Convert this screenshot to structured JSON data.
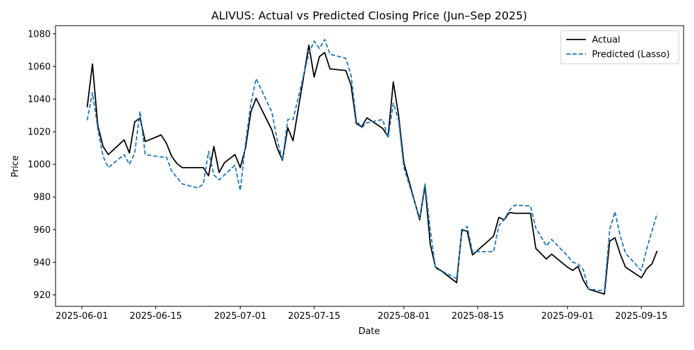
{
  "chart_data": {
    "type": "line",
    "title": "ALIVUS: Actual vs Predicted Closing Price (Jun–Sep 2025)",
    "xlabel": "Date",
    "ylabel": "Price",
    "xlim": [
      "2025-05-27",
      "2025-09-23"
    ],
    "ylim": [
      913,
      1085
    ],
    "x_ticks": [
      "2025-06-01",
      "2025-06-15",
      "2025-07-01",
      "2025-07-15",
      "2025-08-01",
      "2025-08-15",
      "2025-09-01",
      "2025-09-15"
    ],
    "y_ticks": [
      920,
      940,
      960,
      980,
      1000,
      1020,
      1040,
      1060,
      1080
    ],
    "grid": false,
    "legend": {
      "position": "top-right"
    },
    "series": [
      {
        "name": "Actual",
        "color": "#000000",
        "style": "solid",
        "points": [
          [
            "2025-06-02",
            1035
          ],
          [
            "2025-06-03",
            1061.5
          ],
          [
            "2025-06-04",
            1024
          ],
          [
            "2025-06-05",
            1011
          ],
          [
            "2025-06-06",
            1006
          ],
          [
            "2025-06-09",
            1015
          ],
          [
            "2025-06-10",
            1007
          ],
          [
            "2025-06-11",
            1026
          ],
          [
            "2025-06-12",
            1028.5
          ],
          [
            "2025-06-13",
            1014
          ],
          [
            "2025-06-16",
            1018
          ],
          [
            "2025-06-17",
            1013
          ],
          [
            "2025-06-18",
            1005
          ],
          [
            "2025-06-19",
            1000.5
          ],
          [
            "2025-06-20",
            998
          ],
          [
            "2025-06-23",
            998
          ],
          [
            "2025-06-24",
            998
          ],
          [
            "2025-06-25",
            993
          ],
          [
            "2025-06-26",
            1011
          ],
          [
            "2025-06-27",
            995
          ],
          [
            "2025-06-28",
            1001
          ],
          [
            "2025-06-30",
            1006
          ],
          [
            "2025-07-01",
            998
          ],
          [
            "2025-07-02",
            1010
          ],
          [
            "2025-07-03",
            1032
          ],
          [
            "2025-07-04",
            1040.5
          ],
          [
            "2025-07-07",
            1021
          ],
          [
            "2025-07-08",
            1010
          ],
          [
            "2025-07-09",
            1002.5
          ],
          [
            "2025-07-10",
            1022.5
          ],
          [
            "2025-07-11",
            1014.5
          ],
          [
            "2025-07-14",
            1073
          ],
          [
            "2025-07-15",
            1053.5
          ],
          [
            "2025-07-16",
            1066
          ],
          [
            "2025-07-17",
            1068.5
          ],
          [
            "2025-07-18",
            1058.5
          ],
          [
            "2025-07-21",
            1057.5
          ],
          [
            "2025-07-22",
            1048.5
          ],
          [
            "2025-07-23",
            1025
          ],
          [
            "2025-07-24",
            1023
          ],
          [
            "2025-07-25",
            1028.5
          ],
          [
            "2025-07-28",
            1022
          ],
          [
            "2025-07-29",
            1017
          ],
          [
            "2025-07-30",
            1050.5
          ],
          [
            "2025-07-31",
            1030
          ],
          [
            "2025-08-01",
            1001
          ],
          [
            "2025-08-04",
            966
          ],
          [
            "2025-08-05",
            987
          ],
          [
            "2025-08-06",
            951
          ],
          [
            "2025-08-07",
            937
          ],
          [
            "2025-08-08",
            935
          ],
          [
            "2025-08-11",
            927.5
          ],
          [
            "2025-08-12",
            960
          ],
          [
            "2025-08-13",
            959
          ],
          [
            "2025-08-14",
            944.5
          ],
          [
            "2025-08-18",
            956
          ],
          [
            "2025-08-19",
            967.5
          ],
          [
            "2025-08-20",
            966
          ],
          [
            "2025-08-21",
            970.5
          ],
          [
            "2025-08-22",
            970
          ],
          [
            "2025-08-25",
            970
          ],
          [
            "2025-08-26",
            948.5
          ],
          [
            "2025-08-28",
            942
          ],
          [
            "2025-08-29",
            945
          ],
          [
            "2025-09-01",
            937
          ],
          [
            "2025-09-02",
            935
          ],
          [
            "2025-09-03",
            937.5
          ],
          [
            "2025-09-04",
            929
          ],
          [
            "2025-09-05",
            923.5
          ],
          [
            "2025-09-08",
            920.5
          ],
          [
            "2025-09-09",
            953
          ],
          [
            "2025-09-10",
            955
          ],
          [
            "2025-09-11",
            945
          ],
          [
            "2025-09-12",
            937
          ],
          [
            "2025-09-15",
            930.5
          ],
          [
            "2025-09-16",
            936
          ],
          [
            "2025-09-17",
            939
          ],
          [
            "2025-09-18",
            947
          ]
        ]
      },
      {
        "name": "Predicted (Lasso)",
        "color": "#1f77b4",
        "style": "dashed",
        "points": [
          [
            "2025-06-02",
            1027
          ],
          [
            "2025-06-03",
            1044
          ],
          [
            "2025-06-04",
            1022
          ],
          [
            "2025-06-05",
            1005
          ],
          [
            "2025-06-06",
            998
          ],
          [
            "2025-06-09",
            1006
          ],
          [
            "2025-06-10",
            1000
          ],
          [
            "2025-06-11",
            1007
          ],
          [
            "2025-06-12",
            1032.5
          ],
          [
            "2025-06-13",
            1006
          ],
          [
            "2025-06-16",
            1004.5
          ],
          [
            "2025-06-17",
            1004.5
          ],
          [
            "2025-06-18",
            996
          ],
          [
            "2025-06-19",
            992
          ],
          [
            "2025-06-20",
            988
          ],
          [
            "2025-06-23",
            985.5
          ],
          [
            "2025-06-24",
            988
          ],
          [
            "2025-06-25",
            1008
          ],
          [
            "2025-06-26",
            993.5
          ],
          [
            "2025-06-27",
            990.5
          ],
          [
            "2025-06-28",
            993.5
          ],
          [
            "2025-06-30",
            999.5
          ],
          [
            "2025-07-01",
            984
          ],
          [
            "2025-07-02",
            1013
          ],
          [
            "2025-07-03",
            1037
          ],
          [
            "2025-07-04",
            1052.5
          ],
          [
            "2025-07-07",
            1032
          ],
          [
            "2025-07-08",
            1015
          ],
          [
            "2025-07-09",
            1002.5
          ],
          [
            "2025-07-10",
            1027.5
          ],
          [
            "2025-07-11",
            1027.5
          ],
          [
            "2025-07-14",
            1068
          ],
          [
            "2025-07-15",
            1075.5
          ],
          [
            "2025-07-16",
            1071
          ],
          [
            "2025-07-17",
            1076.5
          ],
          [
            "2025-07-18",
            1067.5
          ],
          [
            "2025-07-21",
            1065
          ],
          [
            "2025-07-22",
            1054.5
          ],
          [
            "2025-07-23",
            1027
          ],
          [
            "2025-07-24",
            1022.5
          ],
          [
            "2025-07-25",
            1025.5
          ],
          [
            "2025-07-28",
            1027.5
          ],
          [
            "2025-07-29",
            1016
          ],
          [
            "2025-07-30",
            1037.5
          ],
          [
            "2025-07-31",
            1027
          ],
          [
            "2025-08-01",
            998
          ],
          [
            "2025-08-04",
            967
          ],
          [
            "2025-08-05",
            988
          ],
          [
            "2025-08-06",
            960
          ],
          [
            "2025-08-07",
            936
          ],
          [
            "2025-08-08",
            935
          ],
          [
            "2025-08-11",
            930
          ],
          [
            "2025-08-12",
            958.5
          ],
          [
            "2025-08-13",
            962
          ],
          [
            "2025-08-14",
            946.5
          ],
          [
            "2025-08-18",
            946.5
          ],
          [
            "2025-08-19",
            962.5
          ],
          [
            "2025-08-20",
            966
          ],
          [
            "2025-08-21",
            972
          ],
          [
            "2025-08-22",
            975
          ],
          [
            "2025-08-25",
            974.5
          ],
          [
            "2025-08-26",
            961
          ],
          [
            "2025-08-28",
            950
          ],
          [
            "2025-08-29",
            954
          ],
          [
            "2025-09-01",
            944
          ],
          [
            "2025-09-02",
            940
          ],
          [
            "2025-09-03",
            939
          ],
          [
            "2025-09-04",
            935.5
          ],
          [
            "2025-09-05",
            923.5
          ],
          [
            "2025-09-08",
            922.5
          ],
          [
            "2025-09-09",
            960
          ],
          [
            "2025-09-10",
            971
          ],
          [
            "2025-09-11",
            956
          ],
          [
            "2025-09-12",
            945.5
          ],
          [
            "2025-09-15",
            935
          ],
          [
            "2025-09-16",
            948
          ],
          [
            "2025-09-18",
            970
          ]
        ]
      }
    ]
  }
}
